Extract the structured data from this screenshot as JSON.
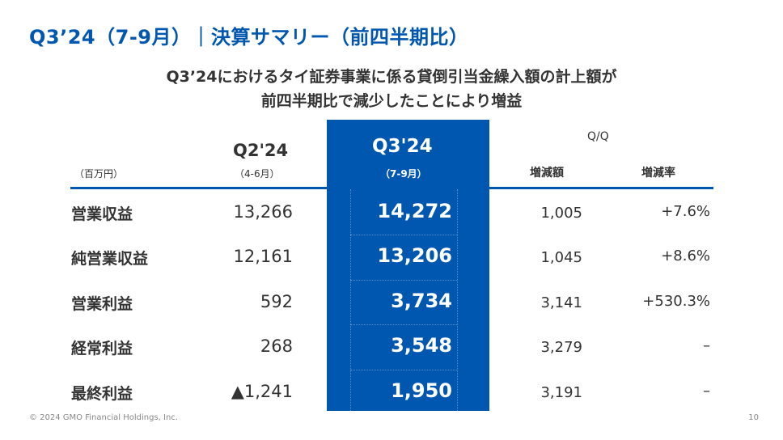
{
  "title": "Q3’24（7-9月）｜決算サマリー（前四半期比）",
  "subtitle": [
    "Q3’24におけるタイ証券事業に係る貸倒引当金繰入額の計上額が",
    "前四半期比で減少したことにより増益"
  ],
  "table": {
    "unit": "（百万円）",
    "col_prev": {
      "label": "Q2'24",
      "period": "（4-6月）"
    },
    "col_curr": {
      "label": "Q3'24",
      "period": "（7-9月）"
    },
    "qq_label": "Q/Q",
    "col_diff": "増減額",
    "col_rate": "増減率",
    "rows": [
      {
        "label": "営業収益",
        "prev": "13,266",
        "curr": "14,272",
        "diff": "1,005",
        "rate": "+7.6%"
      },
      {
        "label": "純営業収益",
        "prev": "12,161",
        "curr": "13,206",
        "diff": "1,045",
        "rate": "+8.6%"
      },
      {
        "label": "営業利益",
        "prev": "592",
        "curr": "3,734",
        "diff": "3,141",
        "rate": "+530.3%"
      },
      {
        "label": "経常利益",
        "prev": "268",
        "curr": "3,548",
        "diff": "3,279",
        "rate": "–"
      },
      {
        "label": "最終利益",
        "prev": "▲1,241",
        "curr": "1,950",
        "diff": "3,191",
        "rate": "–"
      }
    ]
  },
  "footer": {
    "copyright": "© 2024 GMO Financial Holdings, Inc.",
    "page": "10"
  },
  "colors": {
    "accent": "#0057b0"
  }
}
